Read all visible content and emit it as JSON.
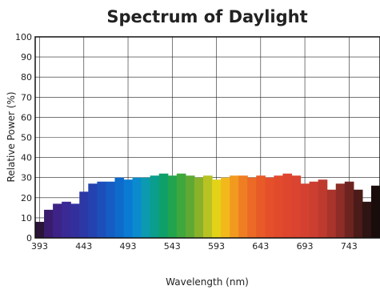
{
  "chart_data": {
    "type": "bar",
    "title": "Spectrum of Daylight",
    "xlabel": "Wavelength (nm)",
    "ylabel": "Relative Power (%)",
    "ylim": [
      0,
      100
    ],
    "xlim": [
      388,
      778
    ],
    "grid": true,
    "x_ticks": [
      393,
      443,
      493,
      543,
      593,
      643,
      693,
      743
    ],
    "y_ticks": [
      0,
      10,
      20,
      30,
      40,
      50,
      60,
      70,
      80,
      90,
      100
    ],
    "bin_width_nm": 10,
    "bars": [
      {
        "x": 388,
        "y": 8,
        "color": "#2a1538"
      },
      {
        "x": 398,
        "y": 14,
        "color": "#3a1c6e"
      },
      {
        "x": 408,
        "y": 17,
        "color": "#3d2387"
      },
      {
        "x": 418,
        "y": 18,
        "color": "#3a2a96"
      },
      {
        "x": 428,
        "y": 17,
        "color": "#33309e"
      },
      {
        "x": 438,
        "y": 23,
        "color": "#2c38a6"
      },
      {
        "x": 448,
        "y": 27,
        "color": "#2443b0"
      },
      {
        "x": 458,
        "y": 28,
        "color": "#1d4fba"
      },
      {
        "x": 468,
        "y": 28,
        "color": "#155cc4"
      },
      {
        "x": 478,
        "y": 30,
        "color": "#0e6acb"
      },
      {
        "x": 488,
        "y": 29,
        "color": "#0a7ad3"
      },
      {
        "x": 498,
        "y": 30,
        "color": "#0b8bcd"
      },
      {
        "x": 508,
        "y": 30,
        "color": "#0b9ab0"
      },
      {
        "x": 518,
        "y": 31,
        "color": "#0a9e8c"
      },
      {
        "x": 528,
        "y": 32,
        "color": "#0fa06a"
      },
      {
        "x": 538,
        "y": 31,
        "color": "#22a34e"
      },
      {
        "x": 548,
        "y": 32,
        "color": "#3ea73d"
      },
      {
        "x": 558,
        "y": 31,
        "color": "#5ea934"
      },
      {
        "x": 568,
        "y": 30,
        "color": "#89b22a"
      },
      {
        "x": 578,
        "y": 31,
        "color": "#b8c323"
      },
      {
        "x": 588,
        "y": 29,
        "color": "#e3d218"
      },
      {
        "x": 598,
        "y": 30,
        "color": "#f3b91c"
      },
      {
        "x": 608,
        "y": 31,
        "color": "#f29a20"
      },
      {
        "x": 618,
        "y": 31,
        "color": "#ef7e22"
      },
      {
        "x": 628,
        "y": 30,
        "color": "#ec6a25"
      },
      {
        "x": 638,
        "y": 31,
        "color": "#e85a28"
      },
      {
        "x": 648,
        "y": 30,
        "color": "#e5502a"
      },
      {
        "x": 658,
        "y": 31,
        "color": "#e24a2c"
      },
      {
        "x": 668,
        "y": 32,
        "color": "#de462e"
      },
      {
        "x": 678,
        "y": 31,
        "color": "#da4430"
      },
      {
        "x": 688,
        "y": 27,
        "color": "#d44131"
      },
      {
        "x": 698,
        "y": 28,
        "color": "#cc3e30"
      },
      {
        "x": 708,
        "y": 29,
        "color": "#bf3a2e"
      },
      {
        "x": 718,
        "y": 24,
        "color": "#a8342b"
      },
      {
        "x": 728,
        "y": 27,
        "color": "#8e2d27"
      },
      {
        "x": 738,
        "y": 28,
        "color": "#6d2420"
      },
      {
        "x": 748,
        "y": 24,
        "color": "#4a1b18"
      },
      {
        "x": 758,
        "y": 18,
        "color": "#2e1412"
      },
      {
        "x": 768,
        "y": 26,
        "color": "#1a0c0b"
      }
    ]
  }
}
